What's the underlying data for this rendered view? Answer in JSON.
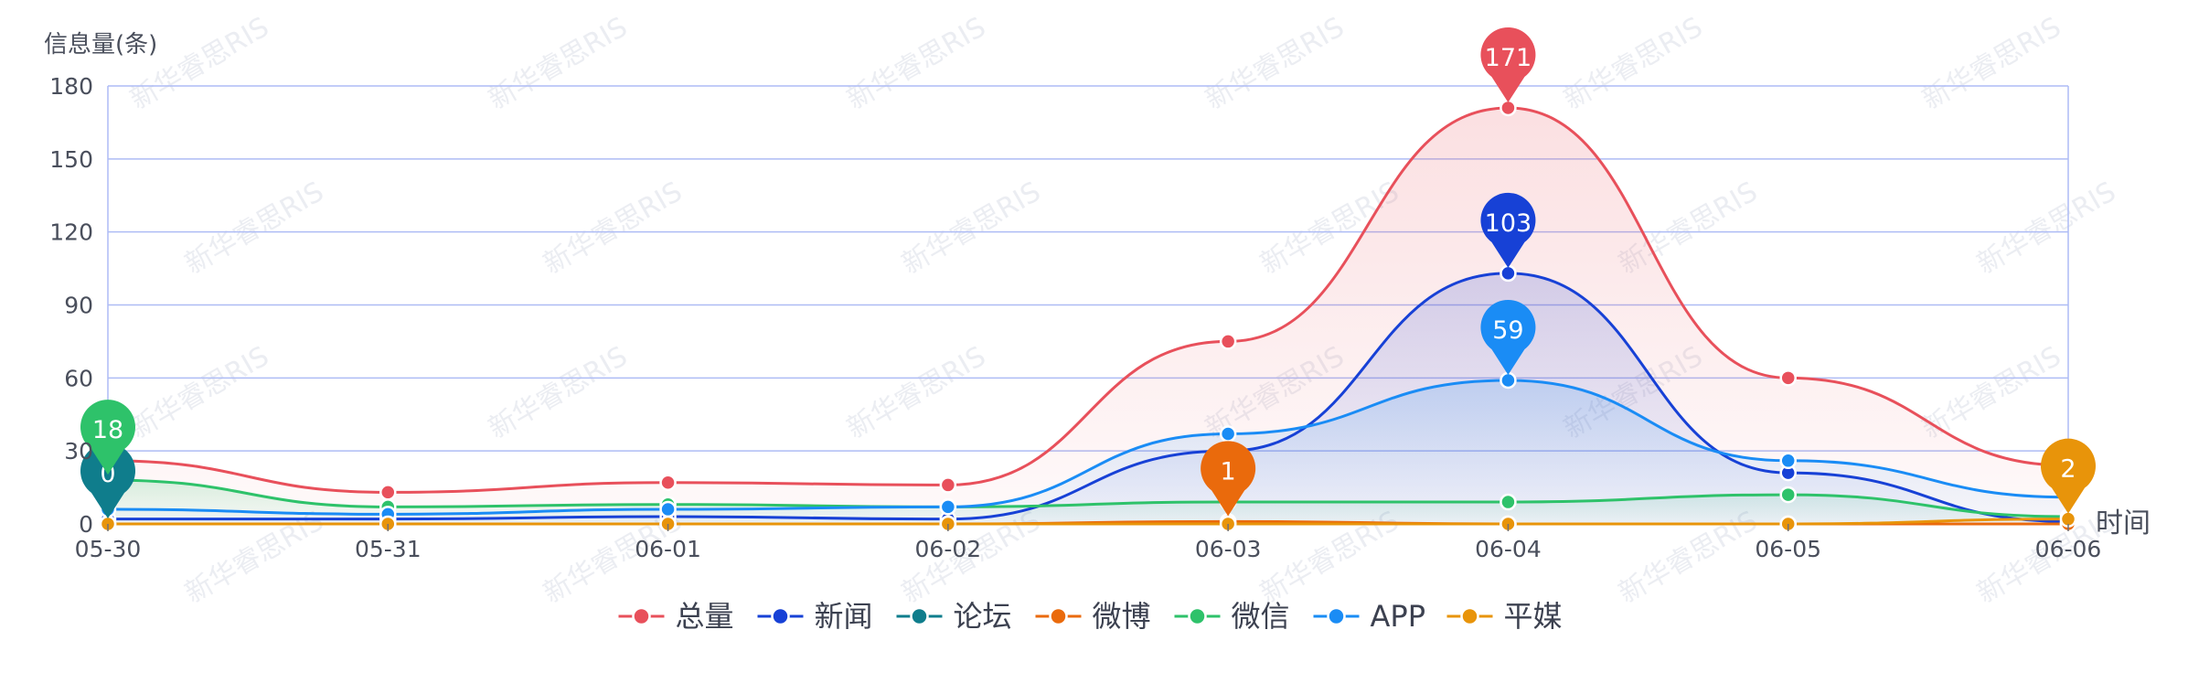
{
  "watermark": {
    "text": "新华睿思RIS"
  },
  "chart_data": {
    "type": "line",
    "ylabel": "信息量(条)",
    "xlabel": "时间",
    "categories": [
      "05-30",
      "05-31",
      "06-01",
      "06-02",
      "06-03",
      "06-04",
      "06-05",
      "06-06"
    ],
    "yticks": [
      0,
      30,
      60,
      90,
      120,
      150,
      180
    ],
    "ylim": [
      0,
      180
    ],
    "grid": true,
    "legend_position": "bottom-center",
    "series": [
      {
        "name": "总量",
        "color": "#e8505b",
        "area": true,
        "values": [
          26,
          13,
          17,
          16,
          75,
          171,
          60,
          24
        ],
        "pins": [
          {
            "index": 5,
            "label": "171"
          }
        ]
      },
      {
        "name": "新闻",
        "color": "#1741d6",
        "area": true,
        "values": [
          2,
          2,
          3,
          2,
          30,
          103,
          21,
          1
        ],
        "pins": [
          {
            "index": 5,
            "label": "103"
          }
        ]
      },
      {
        "name": "论坛",
        "color": "#0f7d8c",
        "area": false,
        "values": [
          0,
          0,
          0,
          0,
          0,
          0,
          0,
          0
        ],
        "pins": [
          {
            "index": 0,
            "label": "0"
          }
        ]
      },
      {
        "name": "微博",
        "color": "#ea6a0c",
        "area": false,
        "values": [
          0,
          0,
          0,
          0,
          1,
          0,
          0,
          0
        ],
        "pins": [
          {
            "index": 4,
            "label": "1"
          }
        ]
      },
      {
        "name": "微信",
        "color": "#2ec26a",
        "area": true,
        "values": [
          18,
          7,
          8,
          7,
          9,
          9,
          12,
          3
        ],
        "pins": [
          {
            "index": 0,
            "label": "18"
          }
        ]
      },
      {
        "name": "APP",
        "color": "#1a8cf5",
        "area": true,
        "values": [
          6,
          4,
          6,
          7,
          37,
          59,
          26,
          11
        ],
        "pins": [
          {
            "index": 5,
            "label": "59"
          }
        ]
      },
      {
        "name": "平媒",
        "color": "#e8940a",
        "area": false,
        "values": [
          0,
          0,
          0,
          0,
          0,
          0,
          0,
          2
        ],
        "pins": [
          {
            "index": 7,
            "label": "2"
          }
        ]
      }
    ]
  }
}
